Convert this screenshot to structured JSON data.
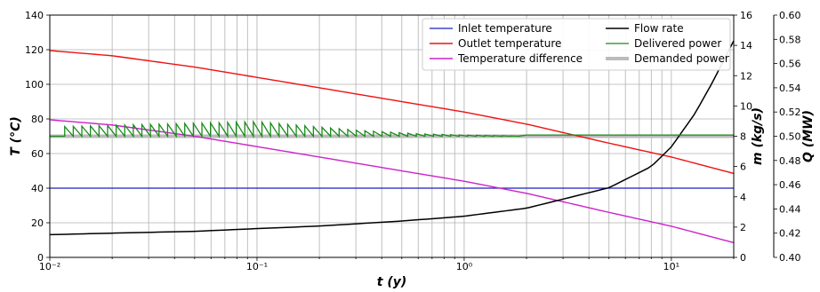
{
  "chart_data": {
    "type": "line",
    "title": "",
    "xlabel": "t (y)",
    "xscale": "log",
    "xlim": [
      0.01,
      20
    ],
    "x_ticks": [
      {
        "value": 0.01,
        "label": "10⁻²"
      },
      {
        "value": 0.1,
        "label": "10⁻¹"
      },
      {
        "value": 1,
        "label": "10⁰"
      },
      {
        "value": 10,
        "label": "10¹"
      }
    ],
    "grid": true,
    "legend": {
      "placement": "top-right",
      "columns": 2
    },
    "axes": {
      "temperature": {
        "label": "T (°C)",
        "side": "left",
        "ylim": [
          0,
          140
        ],
        "ticks": [
          "0",
          "20",
          "40",
          "60",
          "80",
          "100",
          "120",
          "140"
        ]
      },
      "flow": {
        "label": "m (kg/s)",
        "side": "right",
        "ylim": [
          0,
          16
        ],
        "ticks": [
          "0",
          "2",
          "4",
          "6",
          "8",
          "10",
          "12",
          "14",
          "16"
        ]
      },
      "power": {
        "label": "Q (MW)",
        "side": "right-outer",
        "ylim": [
          0.4,
          0.6
        ],
        "ticks": [
          "0.40",
          "0.42",
          "0.44",
          "0.46",
          "0.48",
          "0.50",
          "0.52",
          "0.54",
          "0.56",
          "0.58",
          "0.60"
        ]
      }
    },
    "series": [
      {
        "name": "Inlet temperature",
        "axis": "temperature",
        "color": "#1f1fbf",
        "width": 1.2,
        "points": [
          [
            0.01,
            40
          ],
          [
            20,
            40
          ]
        ]
      },
      {
        "name": "Outlet temperature",
        "axis": "temperature",
        "color": "#ee1111",
        "width": 1.4,
        "points": [
          [
            0.01,
            119.5
          ],
          [
            0.02,
            116.5
          ],
          [
            0.05,
            110
          ],
          [
            0.1,
            104
          ],
          [
            0.2,
            98
          ],
          [
            0.5,
            90
          ],
          [
            1,
            84
          ],
          [
            2,
            77
          ],
          [
            5,
            66
          ],
          [
            10,
            58
          ],
          [
            20,
            48.5
          ]
        ]
      },
      {
        "name": "Temperature difference",
        "axis": "temperature",
        "color": "#cc22cc",
        "width": 1.4,
        "points": [
          [
            0.01,
            79.5
          ],
          [
            0.02,
            76.5
          ],
          [
            0.05,
            70
          ],
          [
            0.1,
            64
          ],
          [
            0.2,
            58
          ],
          [
            0.5,
            50
          ],
          [
            1,
            44
          ],
          [
            2,
            37
          ],
          [
            5,
            26
          ],
          [
            10,
            18
          ],
          [
            20,
            8.5
          ]
        ]
      },
      {
        "name": "Flow rate",
        "axis": "flow",
        "color": "#000000",
        "width": 1.5,
        "points": [
          [
            0.01,
            1.5
          ],
          [
            0.02,
            1.6
          ],
          [
            0.05,
            1.72
          ],
          [
            0.1,
            1.9
          ],
          [
            0.2,
            2.07
          ],
          [
            0.5,
            2.4
          ],
          [
            1,
            2.72
          ],
          [
            2,
            3.25
          ],
          [
            5,
            4.6
          ],
          [
            8,
            6.0
          ],
          [
            10,
            7.3
          ],
          [
            13,
            9.5
          ],
          [
            16,
            11.7
          ],
          [
            18,
            13.1
          ],
          [
            20,
            14.3
          ]
        ]
      },
      {
        "name": "Delivered power",
        "axis": "power",
        "color": "#1a8a1a",
        "width": 1.3,
        "pattern": "sawtooth",
        "baseline": 0.5,
        "cycle_start": 0.0118,
        "cycle_ratio": 1.1,
        "cycle_end": 2.0,
        "peak_points": [
          [
            0.0118,
            0.508
          ],
          [
            0.1,
            0.512
          ],
          [
            0.3,
            0.505
          ],
          [
            0.6,
            0.502
          ],
          [
            1,
            0.501
          ],
          [
            2,
            0.5
          ]
        ],
        "tail_level": 0.501
      },
      {
        "name": "Demanded power",
        "axis": "power",
        "color": "#bbbbbb",
        "width": 4,
        "points": [
          [
            0.01,
            0.5
          ],
          [
            20,
            0.5
          ]
        ]
      }
    ]
  }
}
